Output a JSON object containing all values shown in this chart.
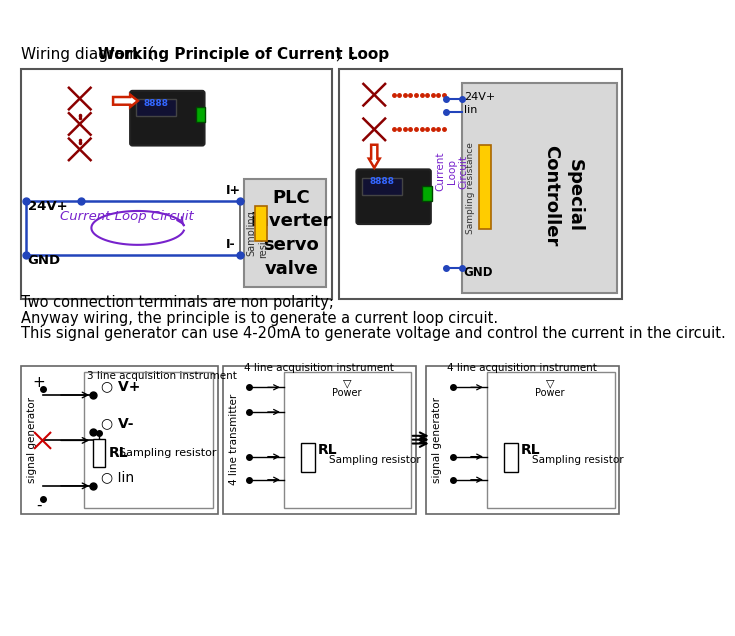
{
  "bg_color": "#ffffff",
  "title_normal1": "Wiring diagram（",
  "title_bold": "Working Principle of Current Loop",
  "title_normal2": "）:",
  "line1": "Two connection terminals are non polarity;",
  "line2": "Anyway wiring, the principle is to generate a current loop circuit.",
  "line3": "This signal generator can use 4-20mA to generate voltage and control the current in the circuit.",
  "box1_plc_title": "PLC\ninverter\nservo\nvalve",
  "box1_sampling": "Sampling\nresistance",
  "box2_special": "Special\nController",
  "box2_sampling": "Sampling resistance",
  "box2_current_loop": "Current\nLoop\nCircuit",
  "diagram3_label": "3 line acquisition instrument",
  "diagram3_vp": "V+",
  "diagram3_vm": "V-",
  "diagram3_rl": "RL",
  "diagram3_sampling": "Sampling resistor",
  "diagram3_lin": "Iin",
  "diagram3_sg": "signal generator",
  "diagram4_label": "4 line acquisition instrument",
  "diagram4_transmitter": "4 line transmitter",
  "diagram4_power": "Power",
  "diagram4_rl": "RL",
  "diagram4_sampling": "Sampling resistor",
  "diagram5_label": "4 line acquisition instrument",
  "diagram5_sg": "signal generator",
  "diagram5_power": "Power",
  "diagram5_rl": "RL",
  "diagram5_sampling": "Sampling resistor"
}
